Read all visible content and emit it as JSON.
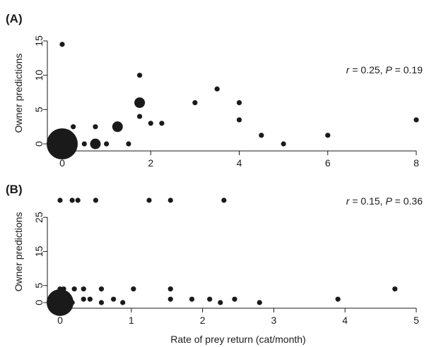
{
  "chart_data": [
    {
      "type": "scatter",
      "panel_label": "(A)",
      "title": "",
      "xlabel": "",
      "ylabel": "Owner predictions",
      "xlim": [
        0,
        8
      ],
      "ylim": [
        0,
        15
      ],
      "xticks": [
        0,
        2,
        4,
        6,
        8
      ],
      "yticks": [
        0,
        5,
        10,
        15
      ],
      "grid": false,
      "annotation": {
        "r_sym": "r",
        "r_val": " = 0.25, ",
        "p_sym": "P",
        "p_val": " = 0.19"
      },
      "points": [
        {
          "x": 0,
          "y": 14.5,
          "size": 1
        },
        {
          "x": 0,
          "y": 0,
          "size": 9
        },
        {
          "x": 0.25,
          "y": 2.5,
          "size": 1
        },
        {
          "x": 0.25,
          "y": 0,
          "size": 1
        },
        {
          "x": 0.5,
          "y": 0,
          "size": 1
        },
        {
          "x": 0.75,
          "y": 2.5,
          "size": 1
        },
        {
          "x": 0.75,
          "y": 0,
          "size": 2
        },
        {
          "x": 1,
          "y": 0,
          "size": 1
        },
        {
          "x": 1.25,
          "y": 2.5,
          "size": 2
        },
        {
          "x": 1.5,
          "y": 0,
          "size": 1
        },
        {
          "x": 1.75,
          "y": 10,
          "size": 1
        },
        {
          "x": 1.75,
          "y": 6,
          "size": 2
        },
        {
          "x": 1.75,
          "y": 4,
          "size": 1
        },
        {
          "x": 2,
          "y": 3,
          "size": 1
        },
        {
          "x": 2.25,
          "y": 3,
          "size": 1
        },
        {
          "x": 3,
          "y": 6,
          "size": 1
        },
        {
          "x": 3.5,
          "y": 8,
          "size": 1
        },
        {
          "x": 4,
          "y": 6,
          "size": 1
        },
        {
          "x": 4,
          "y": 3.5,
          "size": 1
        },
        {
          "x": 4.5,
          "y": 1.25,
          "size": 1
        },
        {
          "x": 5,
          "y": 0,
          "size": 1
        },
        {
          "x": 6,
          "y": 1.25,
          "size": 1
        },
        {
          "x": 8,
          "y": 3.5,
          "size": 1
        }
      ]
    },
    {
      "type": "scatter",
      "panel_label": "(B)",
      "title": "",
      "xlabel": "Rate of prey return (cat/month)",
      "ylabel": "Owner predictions",
      "xlim": [
        0,
        5
      ],
      "ylim": [
        0,
        30
      ],
      "xticks": [
        0,
        1,
        2,
        3,
        4,
        5
      ],
      "yticks": [
        0,
        5,
        15,
        25
      ],
      "grid": false,
      "annotation": {
        "r_sym": "r",
        "r_val": " = 0.15, ",
        "p_sym": "P",
        "p_val": " = 0.36"
      },
      "points": [
        {
          "x": 0,
          "y": 30,
          "size": 1
        },
        {
          "x": 0.17,
          "y": 30,
          "size": 1
        },
        {
          "x": 0.25,
          "y": 30,
          "size": 1
        },
        {
          "x": 0.5,
          "y": 30,
          "size": 1
        },
        {
          "x": 1.25,
          "y": 30,
          "size": 1
        },
        {
          "x": 1.55,
          "y": 30,
          "size": 1
        },
        {
          "x": 2.3,
          "y": 30,
          "size": 1
        },
        {
          "x": 0,
          "y": 0,
          "size": 8
        },
        {
          "x": 0,
          "y": 4,
          "size": 1
        },
        {
          "x": 0.05,
          "y": 4,
          "size": 1
        },
        {
          "x": 0.1,
          "y": 0,
          "size": 1
        },
        {
          "x": 0.17,
          "y": 0,
          "size": 1
        },
        {
          "x": 0.2,
          "y": 4,
          "size": 1
        },
        {
          "x": 0.33,
          "y": 4,
          "size": 1
        },
        {
          "x": 0.33,
          "y": 1,
          "size": 1
        },
        {
          "x": 0.42,
          "y": 1,
          "size": 1
        },
        {
          "x": 0.58,
          "y": 4,
          "size": 1
        },
        {
          "x": 0.58,
          "y": 0,
          "size": 1
        },
        {
          "x": 0.75,
          "y": 1,
          "size": 1
        },
        {
          "x": 0.88,
          "y": 0,
          "size": 1
        },
        {
          "x": 1.03,
          "y": 4,
          "size": 1
        },
        {
          "x": 1.55,
          "y": 4,
          "size": 1
        },
        {
          "x": 1.55,
          "y": 1,
          "size": 1
        },
        {
          "x": 1.85,
          "y": 1,
          "size": 1
        },
        {
          "x": 2.1,
          "y": 1,
          "size": 1
        },
        {
          "x": 2.25,
          "y": 0,
          "size": 1
        },
        {
          "x": 2.45,
          "y": 1,
          "size": 1
        },
        {
          "x": 2.8,
          "y": 0,
          "size": 1
        },
        {
          "x": 3.9,
          "y": 1,
          "size": 1
        },
        {
          "x": 4.7,
          "y": 4,
          "size": 1
        }
      ]
    }
  ]
}
